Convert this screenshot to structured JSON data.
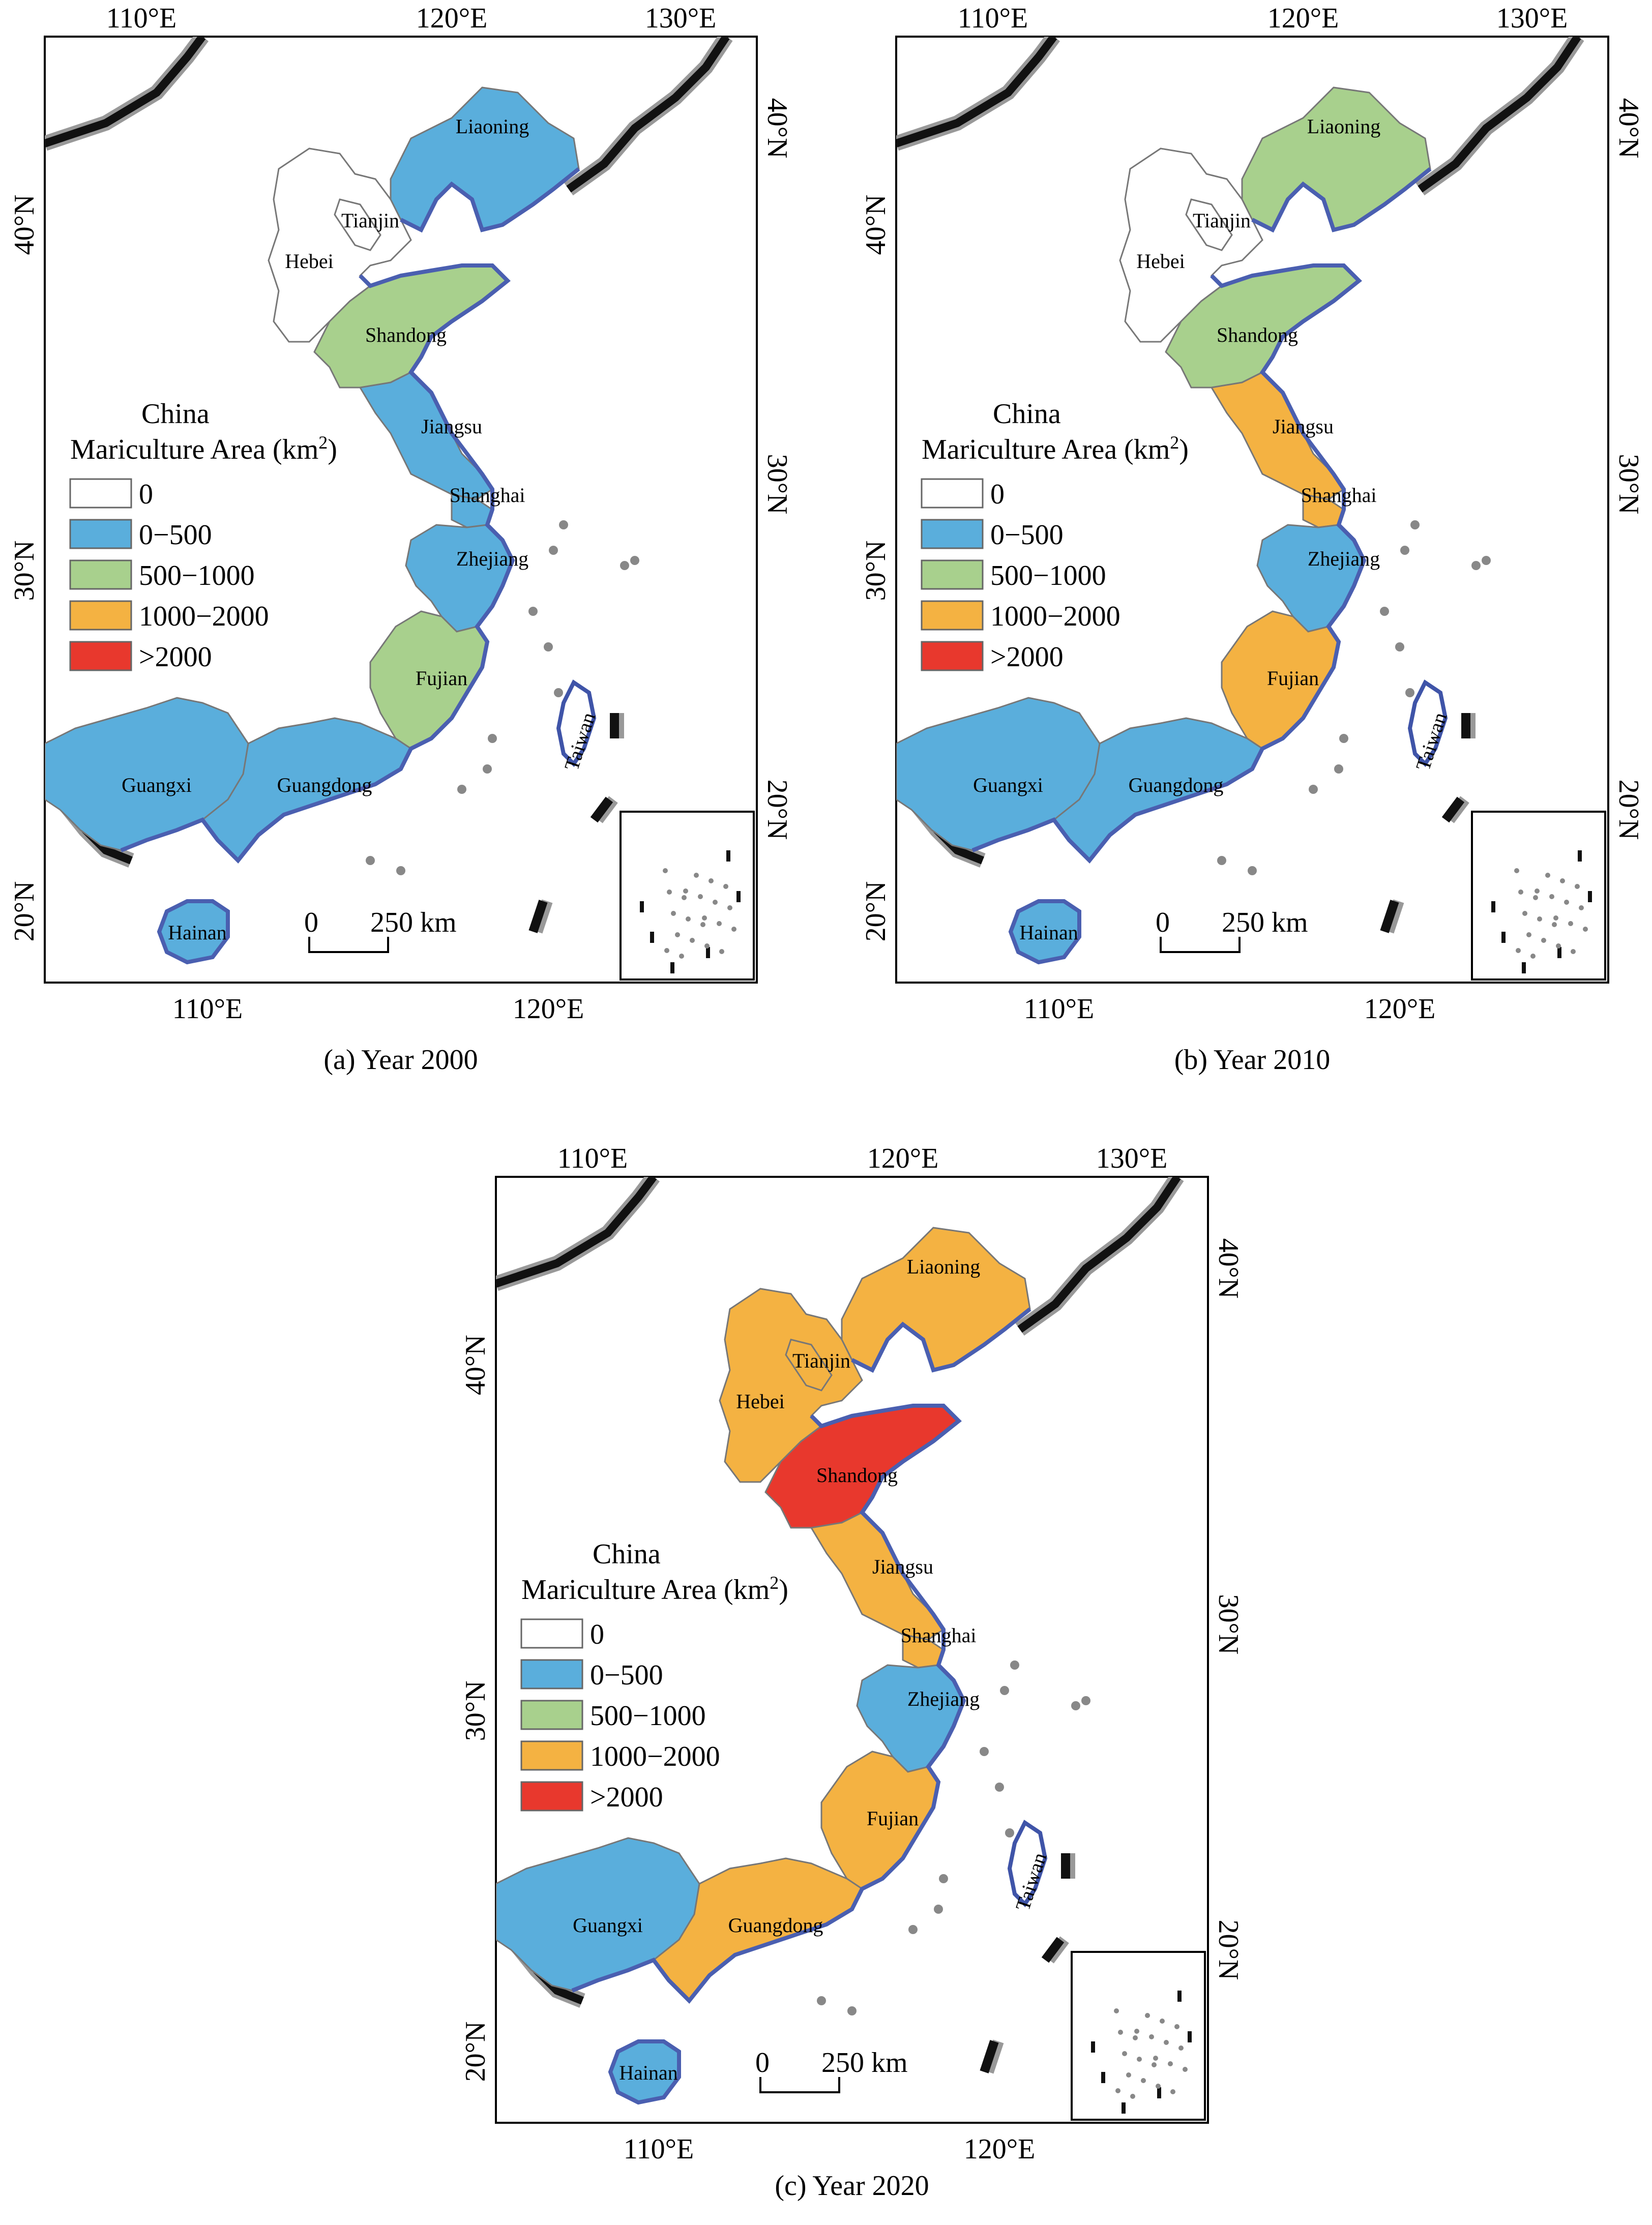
{
  "legend": {
    "title_line1": "China",
    "title_line2": "Mariculture Area (km",
    "title_sup": "2",
    "title_end": ")",
    "classes": [
      {
        "label": "0",
        "color": "#ffffff"
      },
      {
        "label": "0−500",
        "color": "#5aaedc"
      },
      {
        "label": "500−1000",
        "color": "#a8d08d"
      },
      {
        "label": "1000−2000",
        "color": "#f4b242"
      },
      {
        "label": ">2000",
        "color": "#e8382d"
      }
    ]
  },
  "axes": {
    "top_ticks": [
      "110°E",
      "120°E",
      "130°E"
    ],
    "bottom_ticks": [
      "110°E",
      "120°E"
    ],
    "left_ticks": [
      "40°N",
      "30°N",
      "20°N"
    ],
    "right_ticks": [
      "40°N",
      "30°N",
      "20°N"
    ]
  },
  "scale_bar": {
    "start": "0",
    "end": "250 km"
  },
  "provinces": {
    "liaoning": "Liaoning",
    "tianjin": "Tianjin",
    "hebei": "Hebei",
    "shandong": "Shandong",
    "jiangsu": "Jiangsu",
    "shanghai": "Shanghai",
    "zhejiang": "Zhejiang",
    "fujian": "Fujian",
    "guangdong": "Guangdong",
    "guangxi": "Guangxi",
    "hainan": "Hainan",
    "taiwan": "Taiwan"
  },
  "maps": [
    {
      "caption": "(a) Year 2000",
      "classes": {
        "liaoning": "0−500",
        "hebei": "0",
        "tianjin": "0",
        "shandong": "500−1000",
        "jiangsu": "0−500",
        "shanghai": "0−500",
        "zhejiang": "0−500",
        "fujian": "500−1000",
        "guangdong": "0−500",
        "guangxi": "0−500",
        "hainan": "0−500"
      },
      "colors": {
        "liaoning": "#5aaedc",
        "hebei": "#ffffff",
        "tianjin": "#ffffff",
        "shandong": "#a8d08d",
        "jiangsu": "#5aaedc",
        "shanghai": "#5aaedc",
        "zhejiang": "#5aaedc",
        "fujian": "#a8d08d",
        "guangdong": "#5aaedc",
        "guangxi": "#5aaedc",
        "hainan": "#5aaedc"
      }
    },
    {
      "caption": "(b) Year 2010",
      "classes": {
        "liaoning": "500−1000",
        "hebei": "0",
        "tianjin": "0",
        "shandong": "500−1000",
        "jiangsu": "1000−2000",
        "shanghai": "1000−2000",
        "zhejiang": "0−500",
        "fujian": "1000−2000",
        "guangdong": "0−500",
        "guangxi": "0−500",
        "hainan": "0−500"
      },
      "colors": {
        "liaoning": "#a8d08d",
        "hebei": "#ffffff",
        "tianjin": "#ffffff",
        "shandong": "#a8d08d",
        "jiangsu": "#f4b242",
        "shanghai": "#f4b242",
        "zhejiang": "#5aaedc",
        "fujian": "#f4b242",
        "guangdong": "#5aaedc",
        "guangxi": "#5aaedc",
        "hainan": "#5aaedc"
      }
    },
    {
      "caption": "(c) Year 2020",
      "classes": {
        "liaoning": "1000−2000",
        "hebei": "1000−2000",
        "tianjin": "1000−2000",
        "shandong": ">2000",
        "jiangsu": "1000−2000",
        "shanghai": "1000−2000",
        "zhejiang": "0−500",
        "fujian": "1000−2000",
        "guangdong": "1000−2000",
        "guangxi": "0−500",
        "hainan": "0−500"
      },
      "colors": {
        "liaoning": "#f4b242",
        "hebei": "#f4b242",
        "tianjin": "#f4b242",
        "shandong": "#e8382d",
        "jiangsu": "#f4b242",
        "shanghai": "#f4b242",
        "zhejiang": "#5aaedc",
        "fujian": "#f4b242",
        "guangdong": "#f4b242",
        "guangxi": "#5aaedc",
        "hainan": "#5aaedc"
      }
    }
  ]
}
